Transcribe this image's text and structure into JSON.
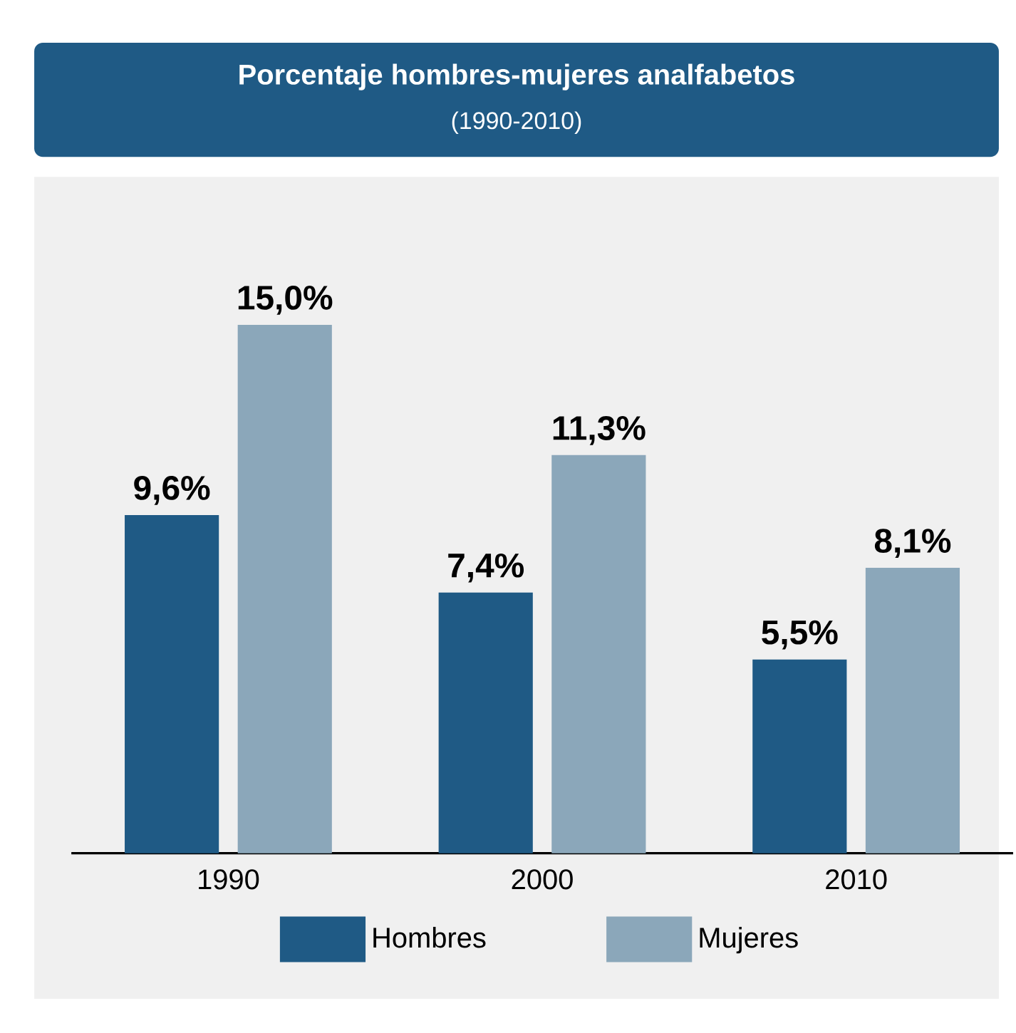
{
  "chart_data": {
    "type": "bar",
    "title": "Porcentaje hombres-mujeres analfabetos",
    "subtitle": "(1990-2010)",
    "categories": [
      "1990",
      "2000",
      "2010"
    ],
    "series": [
      {
        "name": "Hombres",
        "color": "#1f5a85",
        "values": [
          9.6,
          7.4,
          5.5
        ],
        "value_labels": [
          "9,6%",
          "7,4%",
          "5,5%"
        ]
      },
      {
        "name": "Mujeres",
        "color": "#8ba7ba",
        "values": [
          15.0,
          11.3,
          8.1
        ],
        "value_labels": [
          "15,0%",
          "11,3%",
          "8,1%"
        ]
      }
    ],
    "legend": "bottom"
  }
}
